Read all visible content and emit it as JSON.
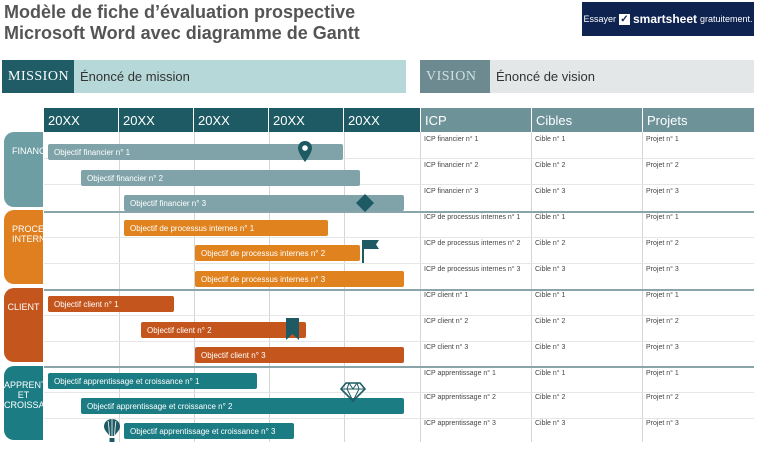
{
  "page": {
    "title_line1": "Modèle de fiche d’évaluation prospective",
    "title_line2": "Microsoft Word avec diagramme de Gantt",
    "cta_prefix": "Essayer",
    "cta_brand": "smartsheet",
    "cta_suffix": "gratuitement."
  },
  "mission": {
    "tag": "MISSION",
    "statement": "Énoncé de mission"
  },
  "vision": {
    "tag": "VISION",
    "statement": "Énoncé de vision"
  },
  "years": [
    "20XX",
    "20XX",
    "20XX",
    "20XX",
    "20XX"
  ],
  "columns": {
    "icp": "ICP",
    "targets": "Cibles",
    "projects": "Projets"
  },
  "categories": [
    {
      "label": "FINANCES",
      "color": "#6d9ea3"
    },
    {
      "label": "PROCESSUS\nINTERNES",
      "color": "#df7f1f"
    },
    {
      "label": "CLIENT",
      "color": "#c4561d"
    },
    {
      "label": "APPRENTISSAGE\nET CROISSANCE",
      "color": "#1b7c84"
    }
  ],
  "objectives": [
    "Objectif financier n° 1",
    "Objectif financier n° 2",
    "Objectif financier n° 3",
    "Objectif de processus internes n° 1",
    "Objectif de processus internes n° 2",
    "Objectif de processus internes n° 3",
    "Objectif client n° 1",
    "Objectif client n° 2",
    "Objectif client n° 3",
    "Objectif apprentissage et croissance n° 1",
    "Objectif apprentissage et croissance n° 2",
    "Objectif apprentissage et croissance n° 3"
  ],
  "rows": [
    {
      "icp": "ICP financier n° 1",
      "target": "Cible n° 1",
      "project": "Projet n° 1"
    },
    {
      "icp": "ICP financier n° 2",
      "target": "Cible n° 2",
      "project": "Projet n° 2"
    },
    {
      "icp": "ICP financier n° 3",
      "target": "Cible n° 3",
      "project": "Projet n° 3"
    },
    {
      "icp": "ICP de processus internes n° 1",
      "target": "Cible n° 1",
      "project": "Projet n° 1"
    },
    {
      "icp": "ICP de processus internes n° 2",
      "target": "Cible n° 2",
      "project": "Projet n° 2"
    },
    {
      "icp": "ICP de processus internes n° 3",
      "target": "Cible n° 3",
      "project": "Projet n° 3"
    },
    {
      "icp": "ICP client n° 1",
      "target": "Cible n° 1",
      "project": "Projet n° 1"
    },
    {
      "icp": "ICP client n° 2",
      "target": "Cible n° 2",
      "project": "Projet n° 2"
    },
    {
      "icp": "ICP client n° 3",
      "target": "Cible n° 3",
      "project": "Projet n° 3"
    },
    {
      "icp": "ICP apprentissage n° 1",
      "target": "Cible n° 1",
      "project": "Projet n° 1"
    },
    {
      "icp": "ICP apprentissage n° 2",
      "target": "Cible n° 2",
      "project": "Projet n° 2"
    },
    {
      "icp": "ICP apprentissage n° 3",
      "target": "Cible n° 3",
      "project": "Projet n° 3"
    }
  ],
  "milestone_icons": [
    "map-pin-icon",
    "diamond-icon",
    "flag-icon",
    "bookmark-icon",
    "gem-icon",
    "hot-air-balloon-icon"
  ],
  "colors": {
    "finance": "#7fa3a8",
    "process": "#e0821e",
    "client": "#c4561d",
    "learning": "#1b7c84",
    "header": "#1d5a63",
    "brand": "#0f2350"
  }
}
